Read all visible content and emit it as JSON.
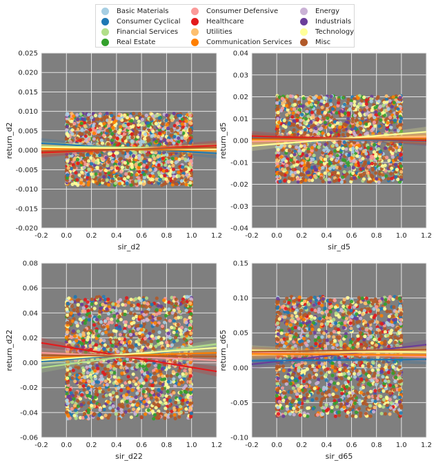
{
  "legend": [
    {
      "name": "Basic Materials",
      "color": "#a6cee3"
    },
    {
      "name": "Consumer Cyclical",
      "color": "#1f78b4"
    },
    {
      "name": "Financial Services",
      "color": "#b2df8a"
    },
    {
      "name": "Real Estate",
      "color": "#33a02c"
    },
    {
      "name": "Consumer Defensive",
      "color": "#fb9a99"
    },
    {
      "name": "Healthcare",
      "color": "#e31a1c"
    },
    {
      "name": "Utilities",
      "color": "#fdbf6f"
    },
    {
      "name": "Communication Services",
      "color": "#ff7f00"
    },
    {
      "name": "Energy",
      "color": "#cab2d6"
    },
    {
      "name": "Industrials",
      "color": "#6a3d9a"
    },
    {
      "name": "Technology",
      "color": "#ffff99"
    },
    {
      "name": "Misc",
      "color": "#b15928"
    }
  ],
  "chart_data": [
    {
      "type": "scatter",
      "xlabel": "sir_d2",
      "ylabel": "return_d2",
      "xlim": [
        -0.2,
        1.2
      ],
      "ylim": [
        -0.02,
        0.025
      ],
      "xticks": [
        "-0.2",
        "0.0",
        "0.2",
        "0.4",
        "0.6",
        "0.8",
        "1.0",
        "1.2"
      ],
      "yticks": [
        "-0.020",
        "-0.015",
        "-0.010",
        "-0.005",
        "0.000",
        "0.005",
        "0.010",
        "0.015",
        "0.020",
        "0.025"
      ],
      "point_x_range": [
        0.0,
        1.0
      ],
      "point_y_range": [
        -0.009,
        0.0095
      ],
      "regression_lines": [
        {
          "series": "Consumer Cyclical",
          "y_at_xmin": 0.0018,
          "y_at_xmax": -0.0008
        },
        {
          "series": "Financial Services",
          "y_at_xmin": 0.001,
          "y_at_xmax": 0.0004
        },
        {
          "series": "Healthcare",
          "y_at_xmin": -0.0006,
          "y_at_xmax": 0.0012
        },
        {
          "series": "Utilities",
          "y_at_xmin": 0.0002,
          "y_at_xmax": 0.0006
        },
        {
          "series": "Communication Services",
          "y_at_xmin": 0.0004,
          "y_at_xmax": 0.0
        },
        {
          "series": "Technology",
          "y_at_xmin": 0.0008,
          "y_at_xmax": 0.0002
        },
        {
          "series": "Misc",
          "y_at_xmin": -0.0002,
          "y_at_xmax": 0.0007
        }
      ]
    },
    {
      "type": "scatter",
      "xlabel": "sir_d5",
      "ylabel": "return_d5",
      "xlim": [
        -0.2,
        1.2
      ],
      "ylim": [
        -0.04,
        0.04
      ],
      "xticks": [
        "-0.2",
        "0.0",
        "0.2",
        "0.4",
        "0.6",
        "0.8",
        "1.0",
        "1.2"
      ],
      "yticks": [
        "-0.04",
        "-0.03",
        "-0.02",
        "-0.01",
        "0.00",
        "0.01",
        "0.02",
        "0.03",
        "0.04"
      ],
      "point_x_range": [
        0.0,
        1.0
      ],
      "point_y_range": [
        -0.019,
        0.0205
      ],
      "regression_lines": [
        {
          "series": "Consumer Cyclical",
          "y_at_xmin": 0.0012,
          "y_at_xmax": -0.0002
        },
        {
          "series": "Healthcare",
          "y_at_xmin": 0.002,
          "y_at_xmax": 0.0
        },
        {
          "series": "Consumer Defensive",
          "y_at_xmin": -0.0005,
          "y_at_xmax": 0.0015
        },
        {
          "series": "Utilities",
          "y_at_xmin": 0.0,
          "y_at_xmax": 0.002
        },
        {
          "series": "Communication Services",
          "y_at_xmin": 0.0005,
          "y_at_xmax": 0.001
        },
        {
          "series": "Technology",
          "y_at_xmin": -0.0025,
          "y_at_xmax": 0.004
        },
        {
          "series": "Misc",
          "y_at_xmin": 0.001,
          "y_at_xmax": 0.0005
        }
      ]
    },
    {
      "type": "scatter",
      "xlabel": "sir_d22",
      "ylabel": "return_d22",
      "xlim": [
        -0.2,
        1.2
      ],
      "ylim": [
        -0.06,
        0.08
      ],
      "xticks": [
        "-0.2",
        "0.0",
        "0.2",
        "0.4",
        "0.6",
        "0.8",
        "1.0",
        "1.2"
      ],
      "yticks": [
        "-0.06",
        "-0.04",
        "-0.02",
        "0.00",
        "0.02",
        "0.04",
        "0.06",
        "0.08"
      ],
      "point_x_range": [
        0.0,
        1.0
      ],
      "point_y_range": [
        -0.045,
        0.053
      ],
      "regression_lines": [
        {
          "series": "Healthcare",
          "y_at_xmin": 0.016,
          "y_at_xmax": -0.007
        },
        {
          "series": "Consumer Cyclical",
          "y_at_xmin": 0.001,
          "y_at_xmax": 0.012
        },
        {
          "series": "Financial Services",
          "y_at_xmin": -0.004,
          "y_at_xmax": 0.015
        },
        {
          "series": "Consumer Defensive",
          "y_at_xmin": 0.008,
          "y_at_xmax": 0.002
        },
        {
          "series": "Communication Services",
          "y_at_xmin": 0.004,
          "y_at_xmax": 0.008
        },
        {
          "series": "Technology",
          "y_at_xmin": 0.002,
          "y_at_xmax": 0.012
        },
        {
          "series": "Misc",
          "y_at_xmin": 0.006,
          "y_at_xmax": 0.005
        }
      ]
    },
    {
      "type": "scatter",
      "xlabel": "sir_d65",
      "ylabel": "return_d65",
      "xlim": [
        -0.2,
        1.2
      ],
      "ylim": [
        -0.1,
        0.15
      ],
      "xticks": [
        "-0.2",
        "0.0",
        "0.2",
        "0.4",
        "0.6",
        "0.8",
        "1.0",
        "1.2"
      ],
      "yticks": [
        "-0.10",
        "-0.05",
        "0.00",
        "0.05",
        "0.10",
        "0.15"
      ],
      "point_x_range": [
        0.0,
        1.0
      ],
      "point_y_range": [
        -0.07,
        0.102
      ],
      "regression_lines": [
        {
          "series": "Industrials",
          "y_at_xmin": 0.005,
          "y_at_xmax": 0.033
        },
        {
          "series": "Consumer Cyclical",
          "y_at_xmin": 0.01,
          "y_at_xmax": 0.012
        },
        {
          "series": "Consumer Defensive",
          "y_at_xmin": 0.022,
          "y_at_xmax": 0.016
        },
        {
          "series": "Utilities",
          "y_at_xmin": 0.018,
          "y_at_xmax": 0.025
        },
        {
          "series": "Communication Services",
          "y_at_xmin": 0.02,
          "y_at_xmax": 0.018
        },
        {
          "series": "Technology",
          "y_at_xmin": 0.025,
          "y_at_xmax": 0.022
        },
        {
          "series": "Misc",
          "y_at_xmin": 0.023,
          "y_at_xmax": 0.026
        }
      ]
    }
  ]
}
